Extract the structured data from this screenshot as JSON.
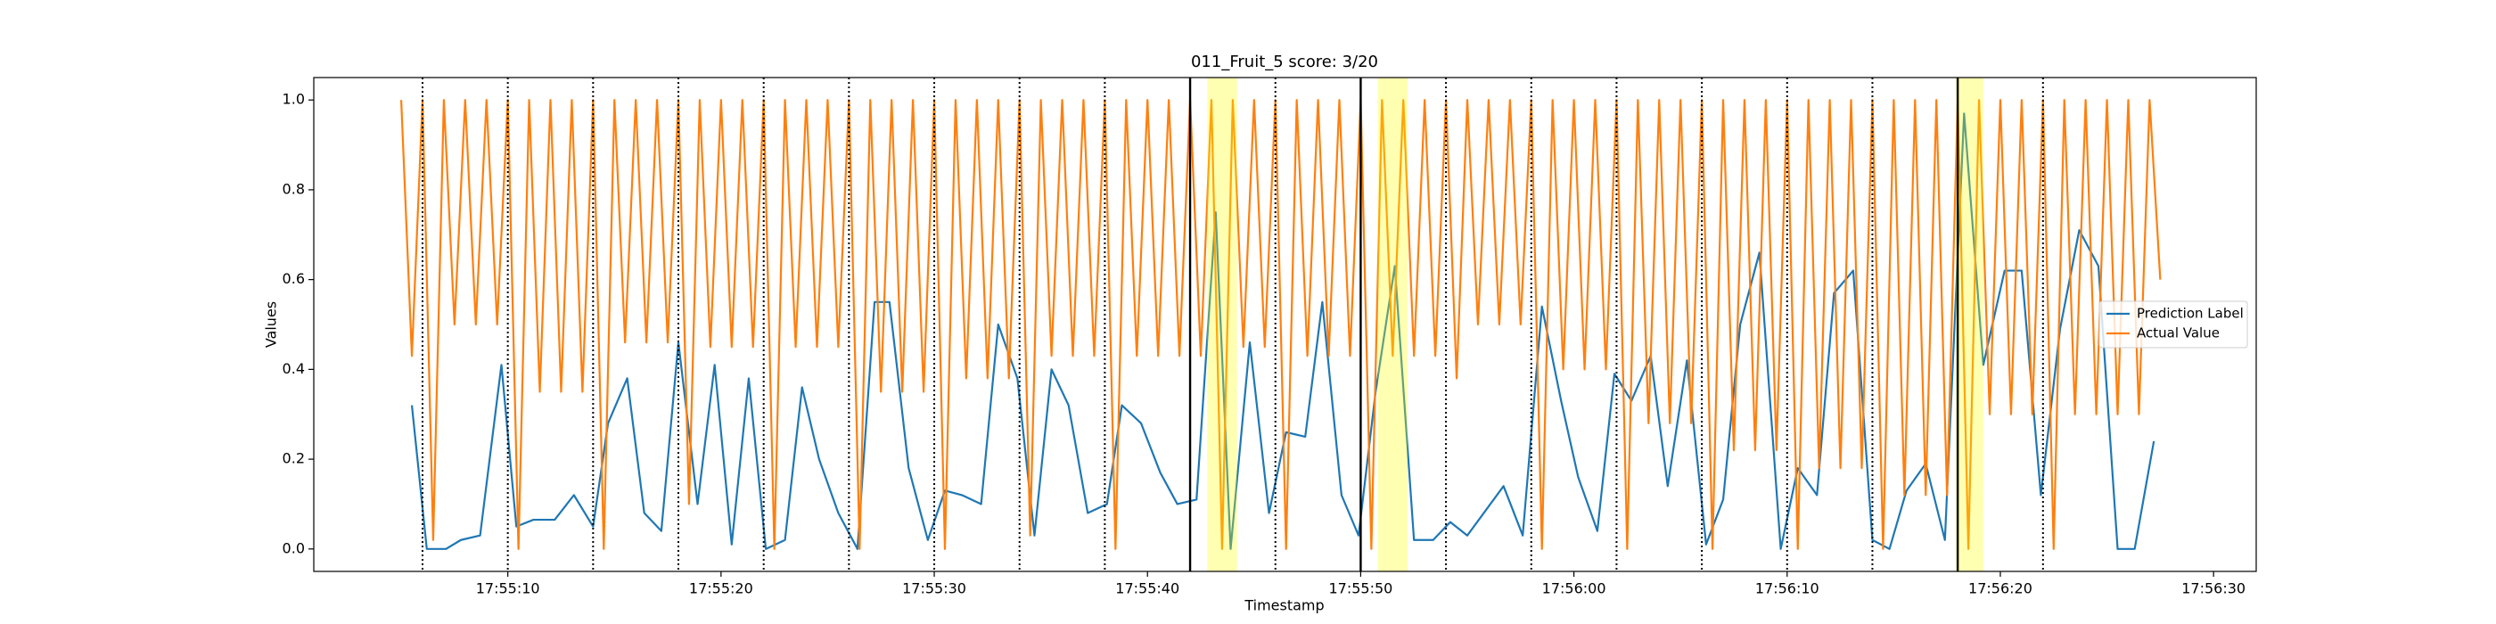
{
  "chart_data": {
    "type": "line",
    "title": "011_Fruit_5 score: 3/20",
    "x_label": "Timestamp",
    "y_label": "Values",
    "xlim": [
      "17:55:00.9",
      "17:56:32"
    ],
    "xticks": [
      "17:55:10",
      "17:55:20",
      "17:55:30",
      "17:55:40",
      "17:55:50",
      "17:56:00",
      "17:56:10",
      "17:56:20",
      "17:56:30"
    ],
    "ylim": [
      -0.05,
      1.05
    ],
    "yticks": [
      {
        "value": 0,
        "label": "0.0"
      },
      0.2,
      0.4,
      0.6,
      0.8,
      {
        "value": 1,
        "label": "1.0"
      }
    ],
    "grid": false,
    "legend": "center right",
    "series": [
      {
        "name": "Prediction Label",
        "color": "#1f77b4",
        "x": [
          "17:55:05.5",
          "17:55:06.2",
          "17:55:07.1",
          "17:55:07.8",
          "17:55:08.7",
          "17:55:09.7",
          "17:55:10.4",
          "17:55:11.2",
          "17:55:12.2",
          "17:55:13.1",
          "17:55:14",
          "17:55:14.7",
          "17:55:15.6",
          "17:55:16.4",
          "17:55:17.2",
          "17:55:18",
          "17:55:18.9",
          "17:55:19.7",
          "17:55:20.5",
          "17:55:21.3",
          "17:55:22.1",
          "17:55:23",
          "17:55:23.8",
          "17:55:24.6",
          "17:55:25.5",
          "17:55:26.4",
          "17:55:27.2",
          "17:55:27.9",
          "17:55:28.8",
          "17:55:29.7",
          "17:55:30.5",
          "17:55:31.3",
          "17:55:32.2",
          "17:55:33",
          "17:55:33.9",
          "17:55:34.7",
          "17:55:35.5",
          "17:55:36.3",
          "17:55:37.2",
          "17:55:38.1",
          "17:55:38.8",
          "17:55:39.7",
          "17:55:40.6",
          "17:55:41.4",
          "17:55:42.3",
          "17:55:43.2",
          "17:55:43.9",
          "17:55:44.8",
          "17:55:45.7",
          "17:55:46.5",
          "17:55:47.4",
          "17:55:48.2",
          "17:55:49.1",
          "17:55:49.9",
          "17:55:50.7",
          "17:55:51.6",
          "17:55:52.5",
          "17:55:53.4",
          "17:55:54.2",
          "17:55:55",
          "17:55:56.7",
          "17:55:57.6",
          "17:55:58.5",
          "17:55:59.4",
          "17:56:00.2",
          "17:56:01.1",
          "17:56:01.9",
          "17:56:02.7",
          "17:56:03.6",
          "17:56:04.4",
          "17:56:05.3",
          "17:56:06.2",
          "17:56:07",
          "17:56:07.8",
          "17:56:08.7",
          "17:56:09.7",
          "17:56:10.5",
          "17:56:11.4",
          "17:56:12.2",
          "17:56:13.1",
          "17:56:14",
          "17:56:14.8",
          "17:56:15.6",
          "17:56:16.5",
          "17:56:17.4",
          "17:56:18.3",
          "17:56:19.2",
          "17:56:20.2",
          "17:56:21",
          "17:56:21.9",
          "17:56:22.8",
          "17:56:23.7",
          "17:56:24.6",
          "17:56:25.5",
          "17:56:26.3",
          "17:56:27.2"
        ],
        "values": [
          0.32,
          0,
          0,
          0.02,
          0.03,
          0.41,
          0.05,
          0.065,
          0.065,
          0.12,
          0.05,
          0.28,
          0.38,
          0.08,
          0.04,
          0.46,
          0.1,
          0.41,
          0.01,
          0.38,
          0,
          0.02,
          0.36,
          0.2,
          0.08,
          0,
          0.55,
          0.55,
          0.18,
          0.02,
          0.13,
          0.12,
          0.1,
          0.5,
          0.38,
          0.03,
          0.4,
          0.32,
          0.08,
          0.1,
          0.32,
          0.28,
          0.17,
          0.1,
          0.11,
          0.75,
          0,
          0.46,
          0.08,
          0.26,
          0.25,
          0.55,
          0.12,
          0.03,
          0.35,
          0.63,
          0.02,
          0.02,
          0.06,
          0.03,
          0.14,
          0.03,
          0.54,
          0.33,
          0.16,
          0.04,
          0.39,
          0.33,
          0.43,
          0.14,
          0.42,
          0.01,
          0.11,
          0.5,
          0.66,
          0,
          0.18,
          0.12,
          0.57,
          0.62,
          0.02,
          0,
          0.13,
          0.19,
          0.02,
          0.97,
          0.41,
          0.62,
          0.62,
          0.12,
          0.49,
          0.71,
          0.63,
          0,
          0,
          0.24
        ]
      },
      {
        "name": "Actual Value",
        "color": "#ff7f0e",
        "x": [
          "17:55:05",
          "17:55:05.5",
          "17:55:06",
          "17:55:06.5",
          "17:55:07",
          "17:55:07.5",
          "17:55:08",
          "17:55:08.5",
          "17:55:09",
          "17:55:09.5",
          "17:55:10",
          "17:55:10.5",
          "17:55:11",
          "17:55:11.5",
          "17:55:12",
          "17:55:12.5",
          "17:55:13",
          "17:55:13.5",
          "17:55:14",
          "17:55:14.5",
          "17:55:15",
          "17:55:15.5",
          "17:55:16",
          "17:55:16.5",
          "17:55:17",
          "17:55:17.5",
          "17:55:18",
          "17:55:18.5",
          "17:55:19",
          "17:55:19.5",
          "17:55:20",
          "17:55:20.5",
          "17:55:21",
          "17:55:21.5",
          "17:55:22",
          "17:55:22.5",
          "17:55:23",
          "17:55:23.5",
          "17:55:24",
          "17:55:24.5",
          "17:55:25",
          "17:55:25.5",
          "17:55:26",
          "17:55:26.5",
          "17:55:27",
          "17:55:27.5",
          "17:55:28",
          "17:55:28.5",
          "17:55:29",
          "17:55:29.5",
          "17:55:30",
          "17:55:30.5",
          "17:55:31",
          "17:55:31.5",
          "17:55:32",
          "17:55:32.5",
          "17:55:33",
          "17:55:33.5",
          "17:55:34",
          "17:55:34.5",
          "17:55:35",
          "17:55:35.5",
          "17:55:36",
          "17:55:36.5",
          "17:55:37",
          "17:55:37.5",
          "17:55:38",
          "17:55:38.5",
          "17:55:39",
          "17:55:39.5",
          "17:55:40",
          "17:55:40.5",
          "17:55:41",
          "17:55:41.5",
          "17:55:42",
          "17:55:42.5",
          "17:55:43",
          "17:55:43.5",
          "17:55:44",
          "17:55:44.5",
          "17:55:45",
          "17:55:45.5",
          "17:55:46",
          "17:55:46.5",
          "17:55:47",
          "17:55:47.5",
          "17:55:48",
          "17:55:48.5",
          "17:55:49",
          "17:55:49.5",
          "17:55:50",
          "17:55:50.5",
          "17:55:51",
          "17:55:51.5",
          "17:55:52",
          "17:55:52.5",
          "17:55:53",
          "17:55:53.5",
          "17:55:54",
          "17:55:54.5",
          "17:55:55",
          "17:55:55.5",
          "17:55:56",
          "17:55:56.5",
          "17:55:57",
          "17:55:57.5",
          "17:55:58",
          "17:55:58.5",
          "17:55:59",
          "17:55:59.5",
          "17:56:00",
          "17:56:00.5",
          "17:56:01",
          "17:56:01.5",
          "17:56:02",
          "17:56:02.5",
          "17:56:03",
          "17:56:03.5",
          "17:56:04",
          "17:56:04.5",
          "17:56:05",
          "17:56:05.5",
          "17:56:06",
          "17:56:06.5",
          "17:56:07",
          "17:56:07.5",
          "17:56:08",
          "17:56:08.5",
          "17:56:09",
          "17:56:09.5",
          "17:56:10",
          "17:56:10.5",
          "17:56:11",
          "17:56:11.5",
          "17:56:12",
          "17:56:12.5",
          "17:56:13",
          "17:56:13.5",
          "17:56:14",
          "17:56:14.5",
          "17:56:15",
          "17:56:15.5",
          "17:56:16",
          "17:56:16.5",
          "17:56:17",
          "17:56:17.5",
          "17:56:18",
          "17:56:18.5",
          "17:56:19",
          "17:56:19.5",
          "17:56:20",
          "17:56:20.5",
          "17:56:21",
          "17:56:21.5",
          "17:56:22",
          "17:56:22.5",
          "17:56:23",
          "17:56:23.5",
          "17:56:24",
          "17:56:24.5",
          "17:56:25",
          "17:56:25.5",
          "17:56:26",
          "17:56:26.5",
          "17:56:27",
          "17:56:27.5"
        ],
        "values": [
          1,
          0.43,
          1,
          0.02,
          1,
          0.5,
          1,
          0.5,
          1,
          0.5,
          1,
          0,
          1,
          0.35,
          1,
          0.35,
          1,
          0.35,
          1,
          0,
          1,
          0.46,
          1,
          0.46,
          1,
          0.46,
          1,
          0.1,
          1,
          0.45,
          1,
          0.45,
          1,
          0.45,
          1,
          0,
          1,
          0.45,
          1,
          0.45,
          1,
          0.45,
          1,
          0,
          1,
          0.35,
          1,
          0.35,
          1,
          0.35,
          1,
          0,
          1,
          0.38,
          1,
          0.38,
          1,
          0.38,
          1,
          0.03,
          1,
          0.43,
          1,
          0.43,
          1,
          0.43,
          1,
          0,
          1,
          0.43,
          1,
          0.43,
          1,
          0.43,
          1,
          0.43,
          1,
          0,
          1,
          0.45,
          1,
          0.45,
          1,
          0,
          1,
          0.43,
          1,
          0.43,
          1,
          0.43,
          1,
          0,
          1,
          0.43,
          1,
          0.43,
          1,
          0.43,
          1,
          0.38,
          1,
          0.5,
          1,
          0.5,
          1,
          0.5,
          1,
          0,
          1,
          0.4,
          1,
          0.4,
          1,
          0.4,
          1,
          0,
          1,
          0.28,
          1,
          0.28,
          1,
          0.28,
          1,
          0,
          1,
          0.22,
          1,
          0.22,
          1,
          0.22,
          1,
          0,
          1,
          0.18,
          1,
          0.18,
          1,
          0.18,
          1,
          0,
          1,
          0.12,
          1,
          0.12,
          1,
          0.12,
          1,
          0,
          1,
          0.3,
          1,
          0.3,
          1,
          0.3,
          1,
          0,
          1,
          0.3,
          1,
          0.3,
          1,
          0.3,
          1,
          0.3,
          1,
          0.6
        ]
      }
    ],
    "vlines": [
      {
        "x": "17:55:06",
        "style": "dotted"
      },
      {
        "x": "17:55:10",
        "style": "dotted"
      },
      {
        "x": "17:55:14",
        "style": "dotted"
      },
      {
        "x": "17:55:18",
        "style": "dotted"
      },
      {
        "x": "17:55:22",
        "style": "dotted"
      },
      {
        "x": "17:55:26",
        "style": "dotted"
      },
      {
        "x": "17:55:30",
        "style": "dotted"
      },
      {
        "x": "17:55:34",
        "style": "dotted"
      },
      {
        "x": "17:55:38",
        "style": "dotted"
      },
      {
        "x": "17:55:42",
        "style": "solid"
      },
      {
        "x": "17:55:46",
        "style": "dotted"
      },
      {
        "x": "17:55:50",
        "style": "solid"
      },
      {
        "x": "17:55:54",
        "style": "dotted"
      },
      {
        "x": "17:55:58",
        "style": "dotted"
      },
      {
        "x": "17:56:02",
        "style": "dotted"
      },
      {
        "x": "17:56:06",
        "style": "dotted"
      },
      {
        "x": "17:56:10",
        "style": "dotted"
      },
      {
        "x": "17:56:14",
        "style": "dotted"
      },
      {
        "x": "17:56:18",
        "style": "solid"
      },
      {
        "x": "17:56:22",
        "style": "dotted"
      }
    ],
    "highlight_spans": [
      [
        "17:55:42.8",
        "17:55:44.2"
      ],
      [
        "17:55:50.8",
        "17:55:52.2"
      ],
      [
        "17:56:17.9",
        "17:56:19.2"
      ]
    ],
    "highlight_color": "#ffff00"
  }
}
